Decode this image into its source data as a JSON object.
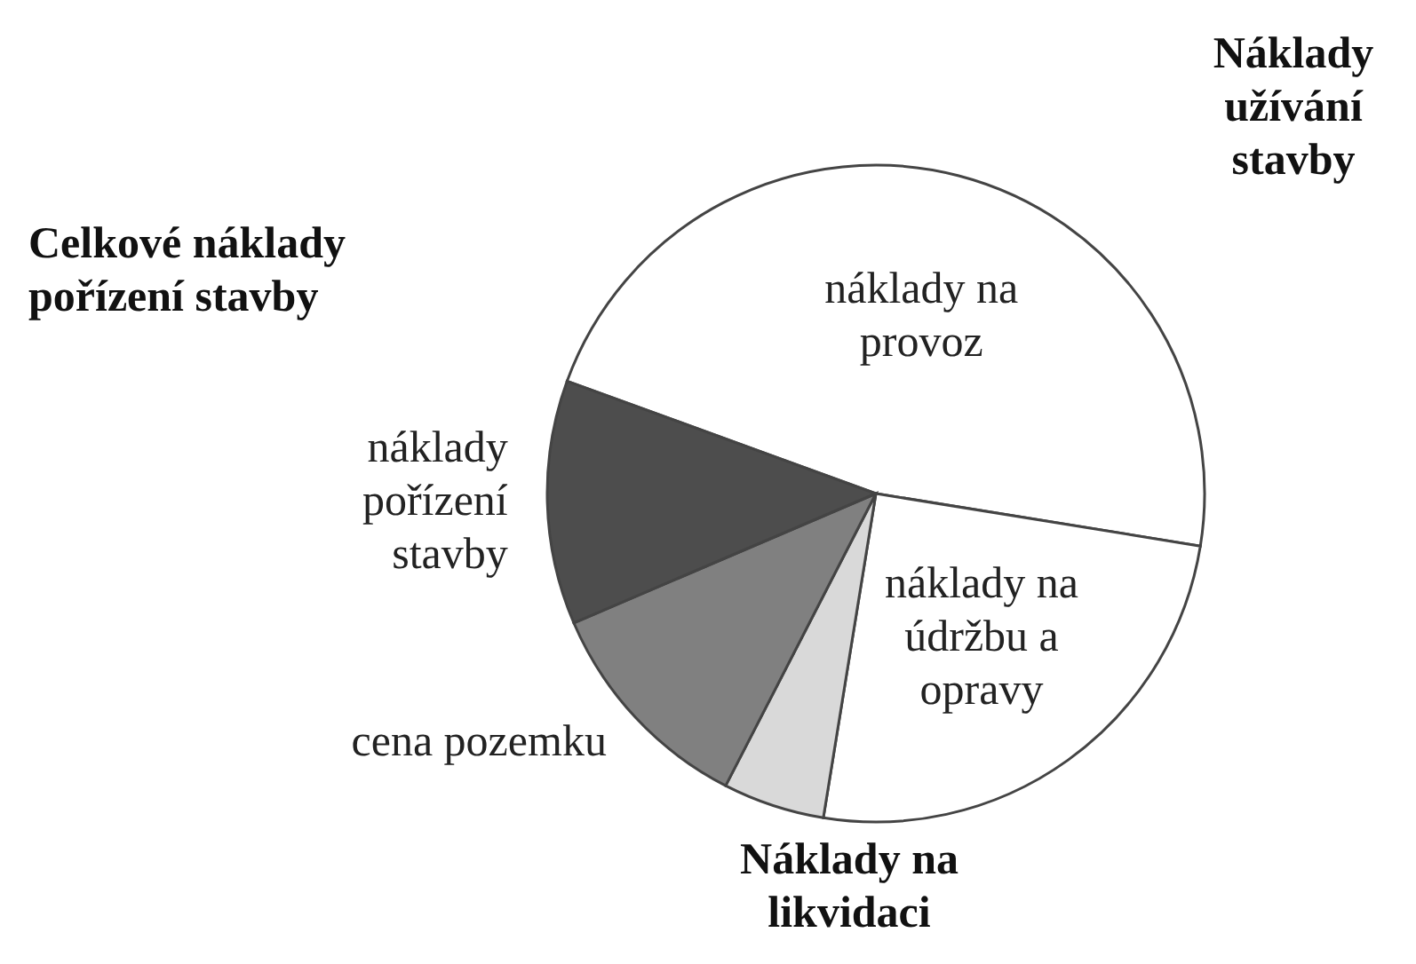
{
  "chart_data": {
    "type": "pie",
    "categories": [
      "náklady na provoz",
      "náklady na údržbu a opravy",
      null,
      "cena pozemku",
      "náklady pořízení stavby"
    ],
    "values": [
      47,
      25,
      5,
      11,
      12
    ],
    "colors": [
      "#ffffff",
      "#ffffff",
      "#d9d9d9",
      "#808080",
      "#4d4d4d"
    ],
    "annotations": [
      "Celkové náklady pořízení stavby",
      "Náklady užívání stavby",
      "Náklady na likvidaci"
    ]
  }
}
